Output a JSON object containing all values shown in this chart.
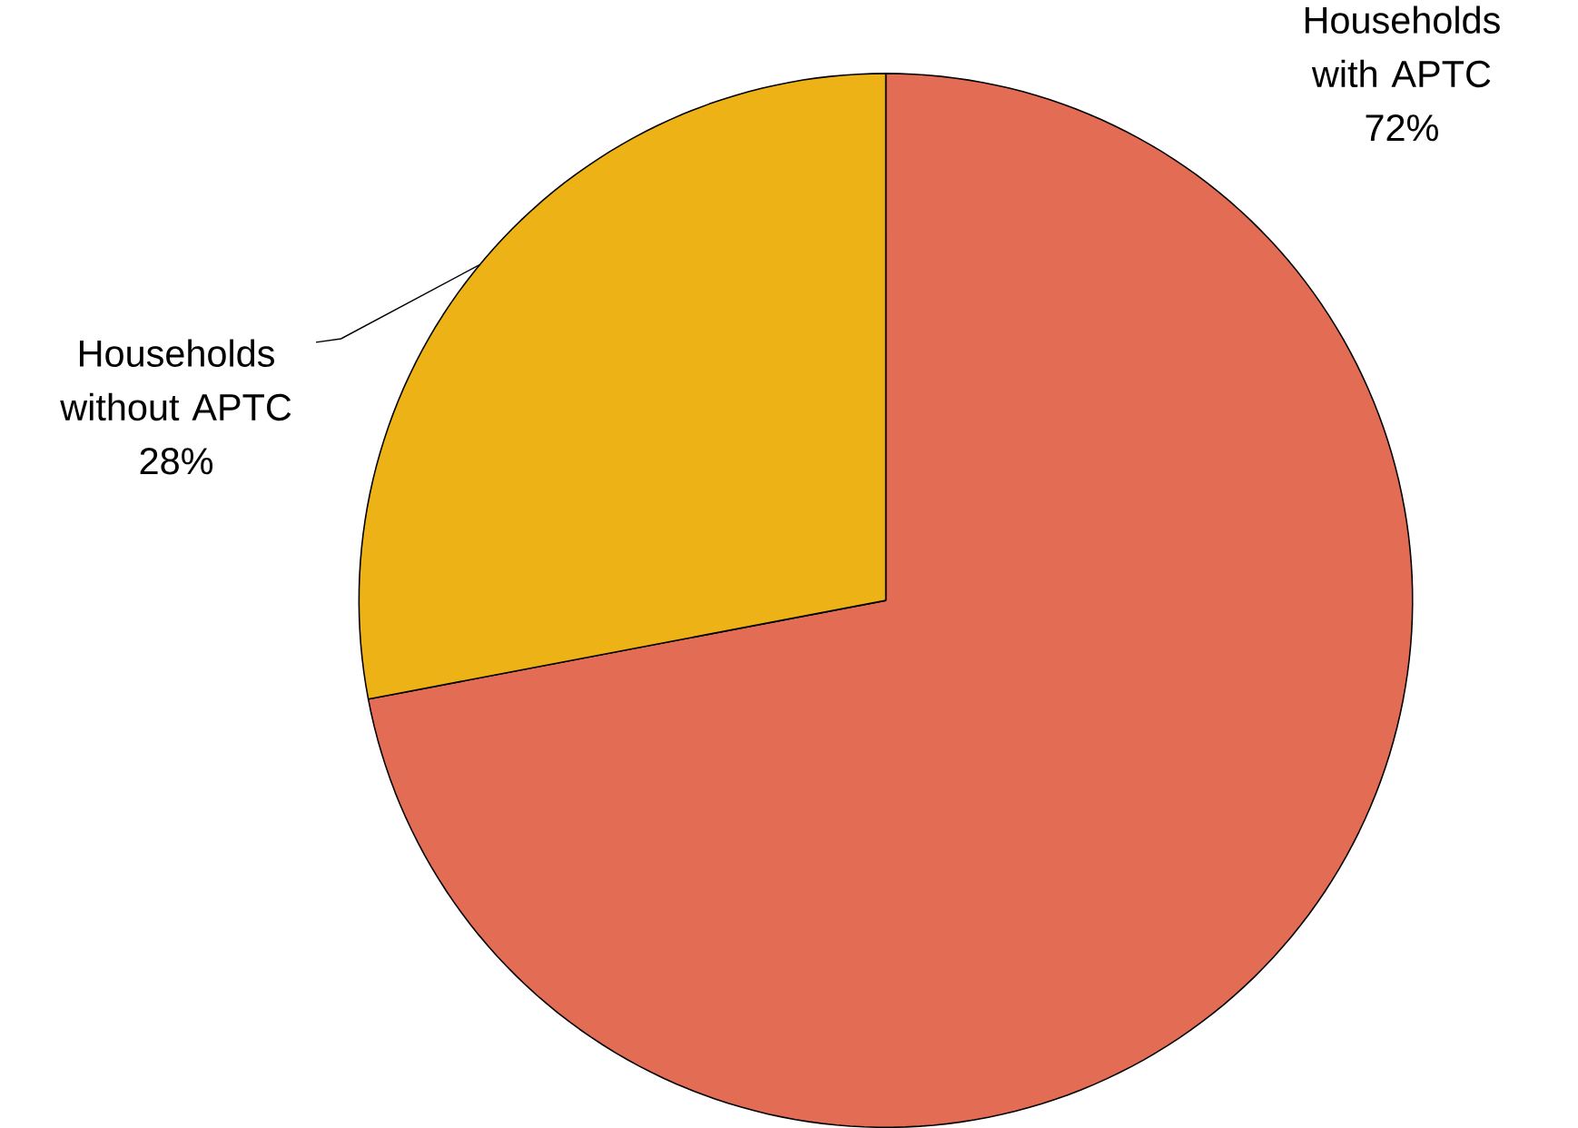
{
  "chart_data": {
    "type": "pie",
    "categories": [
      "Households with APTC",
      "Households without APTC"
    ],
    "values": [
      72,
      28
    ],
    "value_labels": [
      "72%",
      "28%"
    ],
    "colors": [
      "#e36c55",
      "#edb215"
    ]
  }
}
